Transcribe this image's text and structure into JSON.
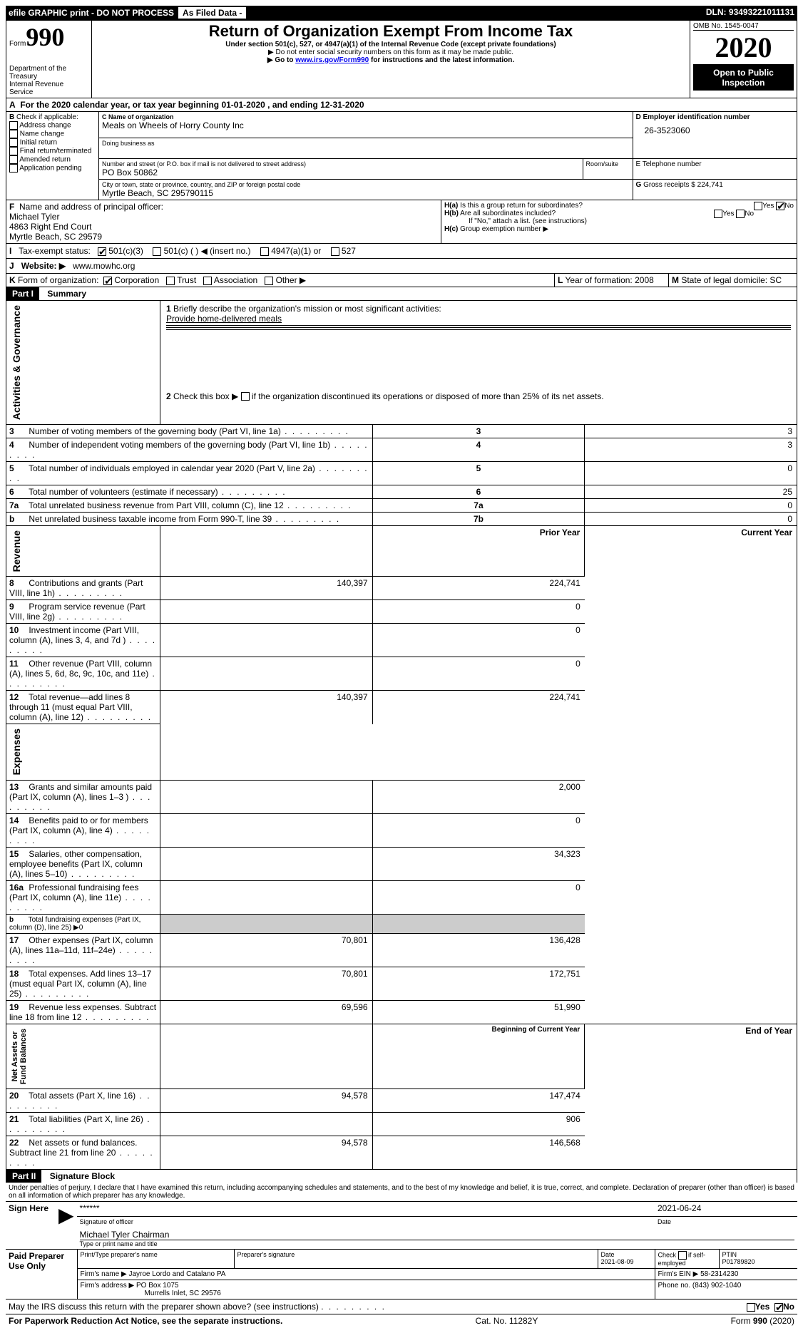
{
  "topbar": {
    "efile": "efile GRAPHIC print - DO NOT PROCESS",
    "asfiled": "As Filed Data -",
    "dln_label": "DLN:",
    "dln": "93493221011131"
  },
  "header": {
    "form_prefix": "Form",
    "form_no": "990",
    "dept": "Department of the Treasury\nInternal Revenue Service",
    "title": "Return of Organization Exempt From Income Tax",
    "sub": "Under section 501(c), 527, or 4947(a)(1) of the Internal Revenue Code (except private foundations)",
    "note1": "▶ Do not enter social security numbers on this form as it may be made public.",
    "note2_pre": "▶ Go to ",
    "note2_link": "www.irs.gov/Form990",
    "note2_post": " for instructions and the latest information.",
    "omb": "OMB No. 1545-0047",
    "year": "2020",
    "open": "Open to Public Inspection"
  },
  "A": {
    "label": "A",
    "text": "For the 2020 calendar year, or tax year beginning 01-01-2020   , and ending 12-31-2020"
  },
  "B": {
    "label": "B",
    "check_label": "Check if applicable:",
    "items": [
      "Address change",
      "Name change",
      "Initial return",
      "Final return/terminated",
      "Amended return",
      "Application pending"
    ]
  },
  "C": {
    "name_label": "C Name of organization",
    "name": "Meals on Wheels of Horry County Inc",
    "dba_label": "Doing business as",
    "street_label": "Number and street (or P.O. box if mail is not delivered to street address)",
    "room_label": "Room/suite",
    "street": "PO Box 50862",
    "city_label": "City or town, state or province, country, and ZIP or foreign postal code",
    "city": "Myrtle Beach, SC  295790115"
  },
  "D": {
    "label": "D Employer identification number",
    "val": "26-3523060"
  },
  "E": {
    "label": "E Telephone number"
  },
  "G": {
    "label": "G",
    "text": "Gross receipts $",
    "val": "224,741"
  },
  "F": {
    "label": "F",
    "text": "Name and address of principal officer:",
    "name": "Michael Tyler",
    "addr1": "4863 Right End Court",
    "addr2": "Myrtle Beach, SC  29579"
  },
  "H": {
    "a": "Is this a group return for subordinates?",
    "b": "Are all subordinates included?",
    "noattach": "If \"No,\" attach a list. (see instructions)",
    "c": "Group exemption number ▶",
    "yes": "Yes",
    "no": "No"
  },
  "I": {
    "label": "I",
    "text": "Tax-exempt status:",
    "opts": [
      "501(c)(3)",
      "501(c) (   ) ◀ (insert no.)",
      "4947(a)(1) or",
      "527"
    ]
  },
  "J": {
    "label": "J",
    "text": "Website: ▶",
    "val": "www.mowhc.org"
  },
  "K": {
    "label": "K",
    "text": "Form of organization:",
    "opts": [
      "Corporation",
      "Trust",
      "Association",
      "Other ▶"
    ]
  },
  "L": {
    "label": "L",
    "text": "Year of formation:",
    "val": "2008"
  },
  "M": {
    "label": "M",
    "text": "State of legal domicile:",
    "val": "SC"
  },
  "part1": {
    "hdr": "Part I",
    "title": "Summary",
    "q1": "Briefly describe the organization's mission or most significant activities:",
    "q1a": "Provide home-delivered meals",
    "q2": "Check this box ▶",
    "q2b": "if the organization discontinued its operations or disposed of more than 25% of its net assets.",
    "rows_gov": [
      {
        "n": "3",
        "t": "Number of voting members of the governing body (Part VI, line 1a)",
        "c": "3",
        "v": "3"
      },
      {
        "n": "4",
        "t": "Number of independent voting members of the governing body (Part VI, line 1b)",
        "c": "4",
        "v": "3"
      },
      {
        "n": "5",
        "t": "Total number of individuals employed in calendar year 2020 (Part V, line 2a)",
        "c": "5",
        "v": "0"
      },
      {
        "n": "6",
        "t": "Total number of volunteers (estimate if necessary)",
        "c": "6",
        "v": "25"
      },
      {
        "n": "7a",
        "t": "Total unrelated business revenue from Part VIII, column (C), line 12",
        "c": "7a",
        "v": "0"
      },
      {
        "n": "b",
        "t": "Net unrelated business taxable income from Form 990-T, line 39",
        "c": "7b",
        "v": "0"
      }
    ],
    "py": "Prior Year",
    "cy": "Current Year",
    "rows_rev": [
      {
        "n": "8",
        "t": "Contributions and grants (Part VIII, line 1h)",
        "p": "140,397",
        "c": "224,741"
      },
      {
        "n": "9",
        "t": "Program service revenue (Part VIII, line 2g)",
        "p": "",
        "c": "0"
      },
      {
        "n": "10",
        "t": "Investment income (Part VIII, column (A), lines 3, 4, and 7d )",
        "p": "",
        "c": "0"
      },
      {
        "n": "11",
        "t": "Other revenue (Part VIII, column (A), lines 5, 6d, 8c, 9c, 10c, and 11e)",
        "p": "",
        "c": "0"
      },
      {
        "n": "12",
        "t": "Total revenue—add lines 8 through 11 (must equal Part VIII, column (A), line 12)",
        "p": "140,397",
        "c": "224,741"
      }
    ],
    "rows_exp": [
      {
        "n": "13",
        "t": "Grants and similar amounts paid (Part IX, column (A), lines 1–3 )",
        "p": "",
        "c": "2,000"
      },
      {
        "n": "14",
        "t": "Benefits paid to or for members (Part IX, column (A), line 4)",
        "p": "",
        "c": "0"
      },
      {
        "n": "15",
        "t": "Salaries, other compensation, employee benefits (Part IX, column (A), lines 5–10)",
        "p": "",
        "c": "34,323"
      },
      {
        "n": "16a",
        "t": "Professional fundraising fees (Part IX, column (A), line 11e)",
        "p": "",
        "c": "0"
      },
      {
        "n": "b",
        "t": "Total fundraising expenses (Part IX, column (D), line 25) ▶0",
        "p": null,
        "c": null,
        "grey": true
      },
      {
        "n": "17",
        "t": "Other expenses (Part IX, column (A), lines 11a–11d, 11f–24e)",
        "p": "70,801",
        "c": "136,428"
      },
      {
        "n": "18",
        "t": "Total expenses. Add lines 13–17 (must equal Part IX, column (A), line 25)",
        "p": "70,801",
        "c": "172,751"
      },
      {
        "n": "19",
        "t": "Revenue less expenses. Subtract line 18 from line 12",
        "p": "69,596",
        "c": "51,990"
      }
    ],
    "bcy": "Beginning of Current Year",
    "eoy": "End of Year",
    "rows_net": [
      {
        "n": "20",
        "t": "Total assets (Part X, line 16)",
        "p": "94,578",
        "c": "147,474"
      },
      {
        "n": "21",
        "t": "Total liabilities (Part X, line 26)",
        "p": "",
        "c": "906"
      },
      {
        "n": "22",
        "t": "Net assets or fund balances. Subtract line 21 from line 20",
        "p": "94,578",
        "c": "146,568"
      }
    ],
    "side_gov": "Activities & Governance",
    "side_rev": "Revenue",
    "side_exp": "Expenses",
    "side_net": "Net Assets or\nFund Balances"
  },
  "part2": {
    "hdr": "Part II",
    "title": "Signature Block",
    "decl": "Under penalties of perjury, I declare that I have examined this return, including accompanying schedules and statements, and to the best of my knowledge and belief, it is true, correct, and complete. Declaration of preparer (other than officer) is based on all information of which preparer has any knowledge."
  },
  "sign": {
    "label": "Sign Here",
    "stars": "******",
    "sigof": "Signature of officer",
    "date": "2021-06-24",
    "date_l": "Date",
    "name": "Michael Tyler  Chairman",
    "type_l": "Type or print name and title"
  },
  "prep": {
    "label": "Paid Preparer Use Only",
    "pt_name_l": "Print/Type preparer's name",
    "sig_l": "Preparer's signature",
    "date_l": "Date",
    "date": "2021-08-09",
    "check_l": "Check",
    "if_l": "if self-employed",
    "ptin_l": "PTIN",
    "ptin": "P01789820",
    "firm_name_l": "Firm's name   ▶",
    "firm_name": "Jayroe Lordo and Catalano PA",
    "firm_ein_l": "Firm's EIN ▶",
    "firm_ein": "58-2314230",
    "firm_addr_l": "Firm's address ▶",
    "firm_addr": "PO Box 1075",
    "firm_addr2": "Murrells Inlet, SC  29576",
    "phone_l": "Phone no.",
    "phone": "(843) 902-1040"
  },
  "footer": {
    "q": "May the IRS discuss this return with the preparer shown above? (see instructions)",
    "yes": "Yes",
    "no": "No",
    "pra": "For Paperwork Reduction Act Notice, see the separate instructions.",
    "cat": "Cat. No. 11282Y",
    "form": "Form 990 (2020)"
  }
}
